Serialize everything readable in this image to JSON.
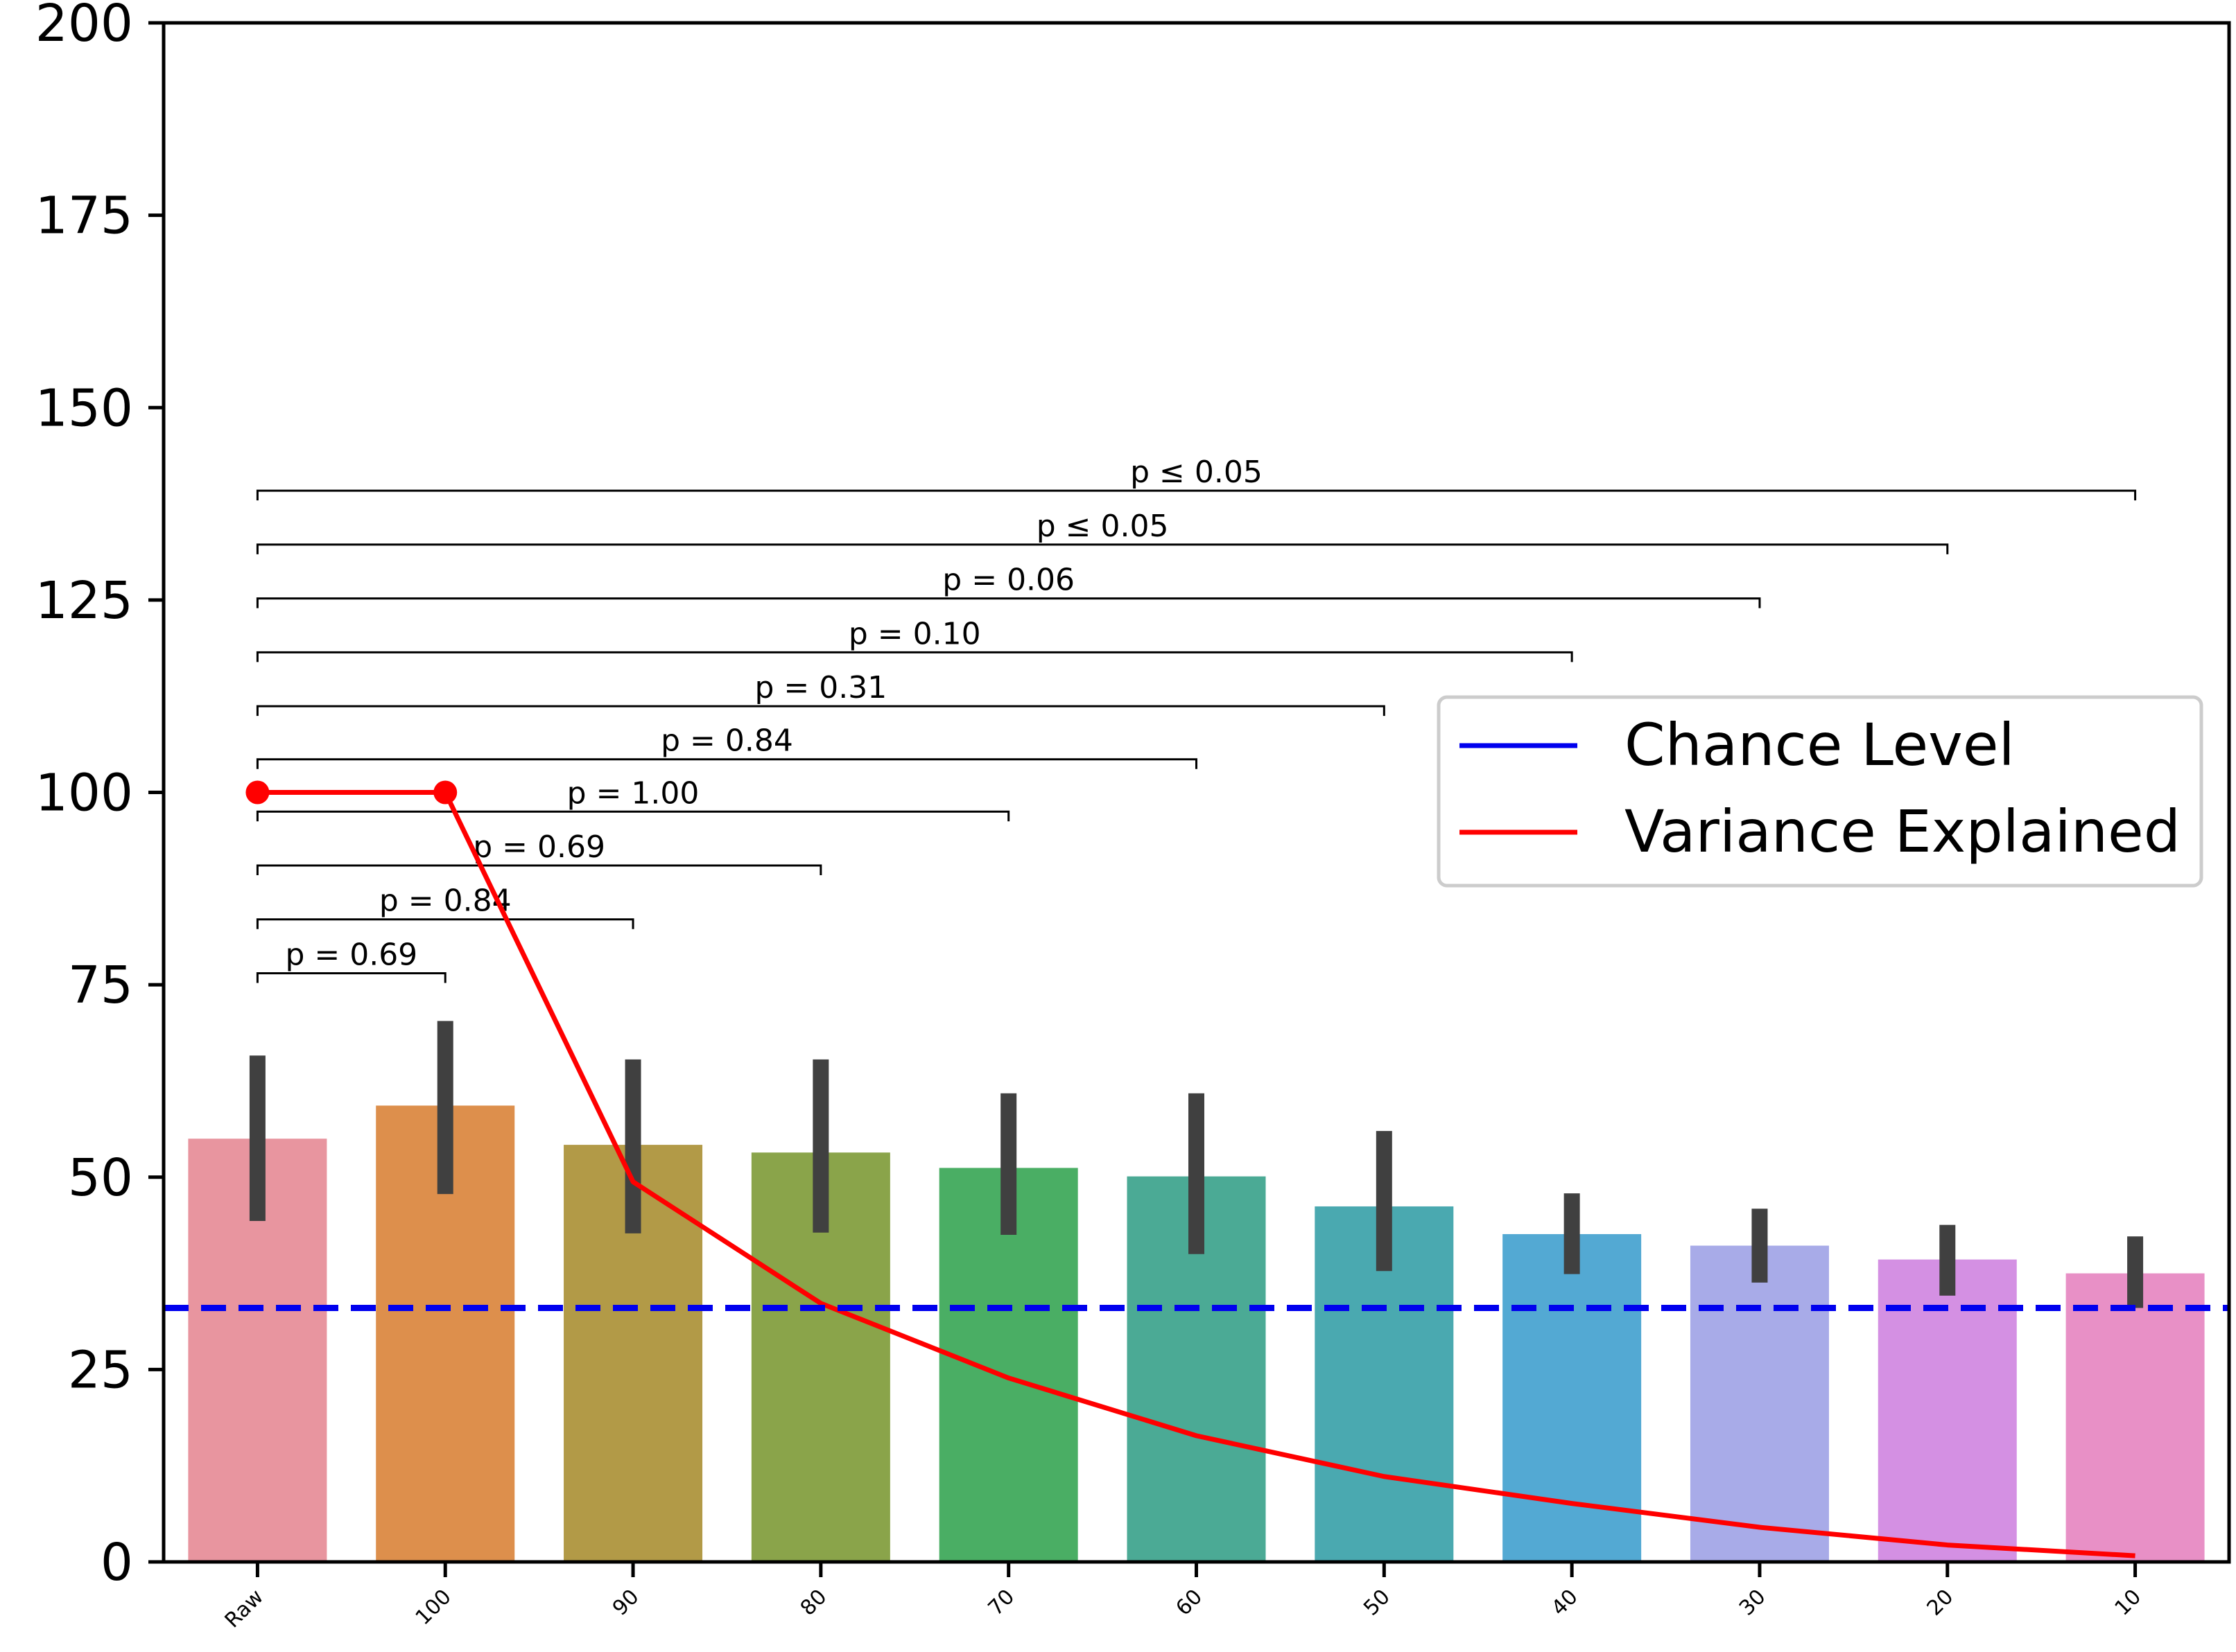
{
  "chart_data": {
    "type": "bar",
    "title": "",
    "xlabel": "",
    "ylabel": "",
    "ylim": [
      0,
      200
    ],
    "yticks": [
      0,
      25,
      50,
      75,
      100,
      125,
      150,
      175,
      200
    ],
    "categories": [
      "Raw",
      "100",
      "90",
      "80",
      "70",
      "60",
      "50",
      "40",
      "30",
      "20",
      "10"
    ],
    "values": [
      55.0,
      59.3,
      54.2,
      53.2,
      51.2,
      50.1,
      46.2,
      42.6,
      41.1,
      39.3,
      37.5
    ],
    "error_low": [
      44.3,
      47.8,
      42.7,
      42.8,
      42.5,
      40.0,
      37.8,
      37.4,
      36.3,
      34.6,
      33.0
    ],
    "error_high": [
      65.8,
      70.3,
      65.3,
      65.3,
      60.9,
      60.9,
      56.0,
      47.9,
      45.9,
      43.8,
      42.3
    ],
    "bar_colors": [
      "#e8959f",
      "#dd8f4c",
      "#b29a47",
      "#8aa44a",
      "#4aae64",
      "#4baa95",
      "#4aa9b0",
      "#53a9d3",
      "#a8abe8",
      "#d490e3",
      "#e890c6"
    ],
    "error_color": "#404040",
    "chance_level": {
      "name": "Chance Level",
      "value": 33.0,
      "color": "#0000ee",
      "style": "dashed"
    },
    "variance_explained": {
      "name": "Variance Explained",
      "color": "#ff0000",
      "values": [
        100,
        100,
        49.4,
        33.6,
        23.9,
        16.4,
        11.1,
        7.6,
        4.5,
        2.2,
        0.8
      ],
      "markers_at": [
        0,
        1
      ]
    },
    "significance": [
      {
        "from": 0,
        "to": 1,
        "y": 76.5,
        "label": "p = 0.69"
      },
      {
        "from": 0,
        "to": 2,
        "y": 83.5,
        "label": "p = 0.84"
      },
      {
        "from": 0,
        "to": 3,
        "y": 90.5,
        "label": "p = 0.69"
      },
      {
        "from": 0,
        "to": 4,
        "y": 97.5,
        "label": "p = 1.00"
      },
      {
        "from": 0,
        "to": 5,
        "y": 104.3,
        "label": "p = 0.84"
      },
      {
        "from": 0,
        "to": 6,
        "y": 111.2,
        "label": "p = 0.31"
      },
      {
        "from": 0,
        "to": 7,
        "y": 118.2,
        "label": "p = 0.10"
      },
      {
        "from": 0,
        "to": 8,
        "y": 125.2,
        "label": "p = 0.06"
      },
      {
        "from": 0,
        "to": 9,
        "y": 132.2,
        "label": "p ≤ 0.05"
      },
      {
        "from": 0,
        "to": 10,
        "y": 139.2,
        "label": "p ≤ 0.05"
      }
    ],
    "legend": {
      "position": "center-right",
      "entries": [
        {
          "label": "Chance Level",
          "color": "#0000ee"
        },
        {
          "label": "Variance Explained",
          "color": "#ff0000"
        }
      ]
    },
    "grid": false
  }
}
